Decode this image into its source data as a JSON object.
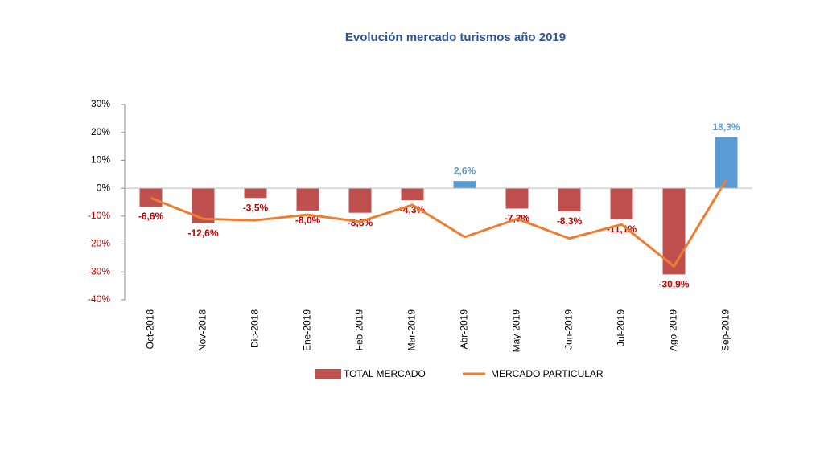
{
  "chart_data": {
    "type": "bar",
    "title": "Evolución mercado turismos año 2019",
    "categories": [
      "Oct-2018",
      "Nov-2018",
      "Dic-2018",
      "Ene-2019",
      "Feb-2019",
      "Mar-2019",
      "Abr-2019",
      "May-2019",
      "Jun-2019",
      "Jul-2019",
      "Ago-2019",
      "Sep-2019"
    ],
    "series": [
      {
        "name": "TOTAL MERCADO",
        "type": "bar",
        "color": "#c0504d",
        "colors": [
          "#c0504d",
          "#c0504d",
          "#c0504d",
          "#c0504d",
          "#c0504d",
          "#c0504d",
          "#5b9bd5",
          "#c0504d",
          "#c0504d",
          "#c0504d",
          "#c0504d",
          "#5b9bd5"
        ],
        "values": [
          -6.6,
          -12.6,
          -3.5,
          -8.0,
          -8.8,
          -4.3,
          2.6,
          -7.3,
          -8.3,
          -11.1,
          -30.9,
          18.3
        ],
        "value_labels": [
          "-6,6%",
          "-12,6%",
          "-3,5%",
          "-8,0%",
          "-8,8%",
          "-4,3%",
          "2,6%",
          "-7,3%",
          "-8,3%",
          "-11,1%",
          "-30,9%",
          "18,3%"
        ]
      },
      {
        "name": "MERCADO PARTICULAR",
        "type": "line",
        "color": "#ed7d31",
        "values": [
          -3.5,
          -11,
          -11.5,
          -9.5,
          -12,
          -6,
          -17.5,
          -11,
          -18,
          -13,
          -28,
          3
        ]
      }
    ],
    "ylim": [
      -40,
      30
    ],
    "yticks": [
      {
        "value": -40,
        "label": "-40%"
      },
      {
        "value": -30,
        "label": "-30%"
      },
      {
        "value": -20,
        "label": "-20%"
      },
      {
        "value": -10,
        "label": "-10%"
      },
      {
        "value": 0,
        "label": "0%"
      },
      {
        "value": 10,
        "label": "10%"
      },
      {
        "value": 20,
        "label": "20%"
      },
      {
        "value": 30,
        "label": "30%"
      }
    ],
    "legend": "bottom"
  }
}
